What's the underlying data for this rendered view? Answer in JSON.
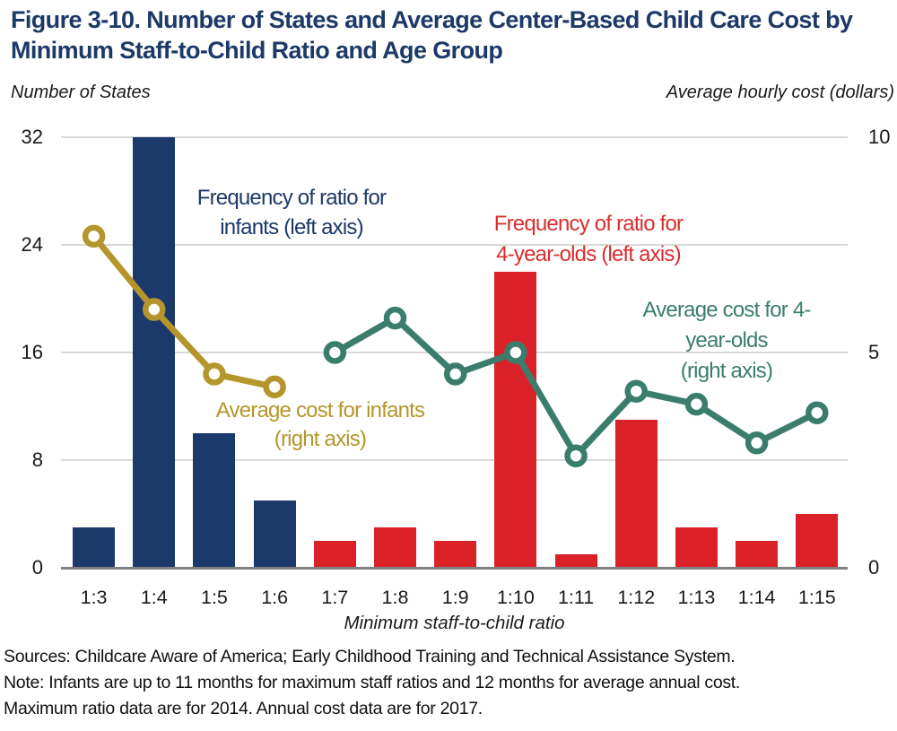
{
  "header": {
    "title": "Figure 3-10. Number of States and Average Center-Based Child Care Cost by Minimum Staff-to-Child Ratio and Age Group"
  },
  "chart_data": {
    "type": "combo-bar-line",
    "categories": [
      "1:3",
      "1:4",
      "1:5",
      "1:6",
      "1:7",
      "1:8",
      "1:9",
      "1:10",
      "1:11",
      "1:12",
      "1:13",
      "1:14",
      "1:15"
    ],
    "xlabel": "Minimum staff-to-child ratio",
    "left_axis": {
      "label": "Number of States",
      "ticks": [
        0,
        8,
        16,
        24,
        32
      ],
      "range": [
        0,
        32
      ]
    },
    "right_axis": {
      "label": "Average hourly cost (dollars)",
      "ticks": [
        0,
        5,
        10
      ],
      "range": [
        0,
        10
      ]
    },
    "grid": true,
    "bar_series": [
      {
        "name": "Frequency of ratio for infants (left axis)",
        "axis": "left",
        "color": "#1b3a6b",
        "values": [
          3,
          32,
          10,
          5,
          null,
          null,
          null,
          null,
          null,
          null,
          null,
          null,
          null
        ]
      },
      {
        "name": "Frequency of ratio for 4-year-olds (left axis)",
        "axis": "left",
        "color": "#da2128",
        "values": [
          null,
          null,
          null,
          null,
          2,
          3,
          2,
          22,
          1,
          11,
          3,
          2,
          4
        ]
      }
    ],
    "line_series": [
      {
        "name": "Average cost for infants (right axis)",
        "axis": "right",
        "color": "#b5962c",
        "values": [
          7.7,
          6.0,
          4.5,
          4.2,
          null,
          null,
          null,
          null,
          null,
          null,
          null,
          null,
          null
        ]
      },
      {
        "name": "Average cost for 4-year-olds (right axis)",
        "axis": "right",
        "color": "#3b7d6d",
        "values": [
          null,
          null,
          null,
          null,
          5.0,
          5.8,
          4.5,
          5.0,
          2.6,
          4.1,
          3.8,
          2.9,
          3.6
        ]
      }
    ]
  },
  "annotations": [
    {
      "color": "#1c3968",
      "lines": [
        "Frequency of ratio for",
        "infants (left axis)"
      ]
    },
    {
      "color": "#da2d2e",
      "lines": [
        "Frequency of ratio for",
        "4-year-olds (left axis)"
      ]
    },
    {
      "color": "#b5962c",
      "lines": [
        "Average cost for infants",
        "(right axis)"
      ]
    },
    {
      "color": "#3b7d6d",
      "lines": [
        "Average cost for 4-",
        "year-olds",
        "(right axis)"
      ]
    }
  ],
  "footer": {
    "lines": [
      "Sources: Childcare Aware of America; Early Childhood Training and Technical Assistance System.",
      "Note: Infants are up to 11 months for maximum staff ratios and 12 months for average annual cost.",
      "Maximum ratio data are for 2014. Annual cost data are for 2017."
    ]
  },
  "colors": {
    "title_navy": "#1c3968",
    "infant_bar": "#1b3a6b",
    "four_year_old_bar": "#da2128",
    "infant_line": "#b5962c",
    "four_year_old_line": "#3b7d6d",
    "gridline": "#d9d9d9",
    "axis_line": "#7f7f7f"
  }
}
